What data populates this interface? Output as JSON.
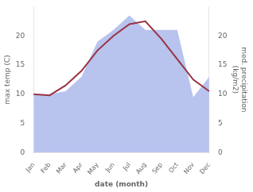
{
  "chart_data": {
    "type": "line",
    "categories": [
      "Jan",
      "Feb",
      "Mar",
      "Apr",
      "May",
      "Jun",
      "Jul",
      "Aug",
      "Sep",
      "Oct",
      "Nov",
      "Dec"
    ],
    "series": [
      {
        "type": "line",
        "color": "#993344",
        "values": [
          10.0,
          9.8,
          11.5,
          14.0,
          17.5,
          20.0,
          22.0,
          22.5,
          19.5,
          16.0,
          12.5,
          10.5
        ]
      },
      {
        "type": "area",
        "color": "#b8c4ee",
        "axis": "y2",
        "values": [
          10.0,
          10.0,
          10.5,
          13.0,
          19.0,
          21.0,
          23.5,
          21.0,
          21.0,
          21.0,
          9.5,
          13.0
        ]
      }
    ],
    "xlabel": "date (month)",
    "ylabel": "max temp (C)",
    "y2label": "med. precipitation\n(kg/m2)",
    "ylim": [
      0,
      25
    ],
    "yticks": [
      0,
      5,
      10,
      15,
      20
    ],
    "y2lim": [
      0,
      25
    ],
    "y2ticks": [
      0,
      5,
      10,
      15,
      20
    ],
    "grid": false
  }
}
